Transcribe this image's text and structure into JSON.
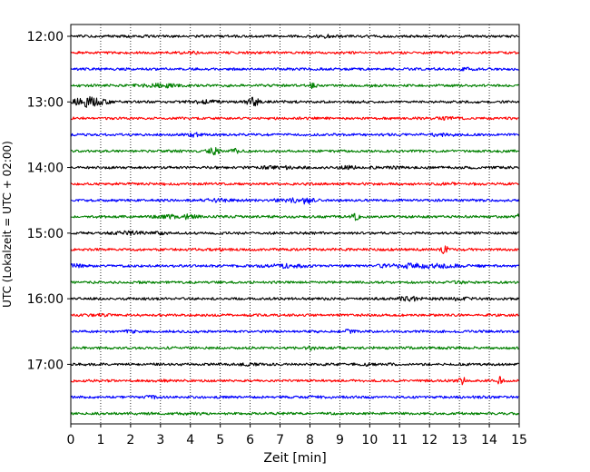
{
  "chart_data": {
    "type": "line",
    "xlabel": "Zeit  [min]",
    "ylabel": "UTC (Lokalzeit = UTC + 02:00)",
    "xlim": [
      0,
      15
    ],
    "x_ticks": [
      "0",
      "1",
      "2",
      "3",
      "4",
      "5",
      "6",
      "7",
      "8",
      "9",
      "10",
      "11",
      "12",
      "13",
      "14",
      "15"
    ],
    "y_ticks": [
      {
        "label": "12:00",
        "row": 0
      },
      {
        "label": "13:00",
        "row": 4
      },
      {
        "label": "14:00",
        "row": 8
      },
      {
        "label": "15:00",
        "row": 12
      },
      {
        "label": "16:00",
        "row": 16
      },
      {
        "label": "17:00",
        "row": 20
      }
    ],
    "grid": "vertical-dotted",
    "colors": [
      "#000000",
      "#ff0000",
      "#0000ff",
      "#008000"
    ],
    "traces": [
      {
        "start": "12:00",
        "color": "#000000",
        "events": [
          [
            8.5,
            0.4,
            0.7
          ]
        ]
      },
      {
        "start": "12:15",
        "color": "#ff0000",
        "events": [
          [
            4.0,
            0.3,
            0.6
          ]
        ]
      },
      {
        "start": "12:30",
        "color": "#0000ff",
        "events": [
          [
            13.2,
            0.3,
            0.7
          ]
        ]
      },
      {
        "start": "12:45",
        "color": "#008000",
        "events": [
          [
            3.0,
            0.6,
            1.6
          ],
          [
            8.1,
            0.1,
            2.5
          ]
        ]
      },
      {
        "start": "13:00",
        "color": "#000000",
        "events": [
          [
            0.6,
            0.5,
            5.0
          ],
          [
            4.5,
            0.5,
            1.2
          ],
          [
            6.1,
            0.2,
            4.0
          ]
        ]
      },
      {
        "start": "13:15",
        "color": "#ff0000",
        "events": [
          [
            12.6,
            0.3,
            0.6
          ]
        ]
      },
      {
        "start": "13:30",
        "color": "#0000ff",
        "events": [
          [
            4.1,
            0.2,
            2.0
          ],
          [
            12.4,
            0.5,
            0.8
          ]
        ]
      },
      {
        "start": "13:45",
        "color": "#008000",
        "events": [
          [
            4.8,
            0.2,
            3.5
          ],
          [
            5.5,
            0.15,
            2.8
          ]
        ]
      },
      {
        "start": "14:00",
        "color": "#000000",
        "events": [
          [
            7.0,
            0.6,
            0.9
          ],
          [
            9.5,
            0.5,
            1.3
          ],
          [
            10.8,
            0.2,
            0.8
          ]
        ]
      },
      {
        "start": "14:15",
        "color": "#ff0000",
        "events": [
          [
            12.8,
            0.3,
            0.5
          ]
        ]
      },
      {
        "start": "14:30",
        "color": "#0000ff",
        "events": [
          [
            5.0,
            0.5,
            1.2
          ],
          [
            7.5,
            0.6,
            1.8
          ],
          [
            7.9,
            0.15,
            2.2
          ]
        ]
      },
      {
        "start": "14:45",
        "color": "#008000",
        "events": [
          [
            3.5,
            0.7,
            1.3
          ],
          [
            4.0,
            0.2,
            1.6
          ],
          [
            9.5,
            0.15,
            2.8
          ],
          [
            15.0,
            0.1,
            2.0
          ]
        ]
      },
      {
        "start": "15:00",
        "color": "#000000",
        "events": [
          [
            1.9,
            0.5,
            1.8
          ],
          [
            3.0,
            0.3,
            0.8
          ]
        ]
      },
      {
        "start": "15:15",
        "color": "#ff0000",
        "events": [
          [
            5.0,
            0.1,
            1.0
          ],
          [
            9.1,
            0.1,
            1.0
          ],
          [
            12.5,
            0.12,
            3.5
          ]
        ]
      },
      {
        "start": "15:30",
        "color": "#0000ff",
        "events": [
          [
            0.2,
            0.3,
            1.4
          ],
          [
            7.2,
            0.6,
            1.4
          ],
          [
            10.8,
            0.6,
            1.4
          ],
          [
            11.6,
            0.4,
            2.2
          ],
          [
            12.5,
            0.7,
            1.4
          ]
        ]
      },
      {
        "start": "15:45",
        "color": "#008000",
        "events": [
          [
            13.0,
            0.3,
            0.5
          ]
        ]
      },
      {
        "start": "16:00",
        "color": "#000000",
        "events": [
          [
            11.3,
            0.4,
            1.6
          ],
          [
            12.9,
            0.5,
            1.0
          ]
        ]
      },
      {
        "start": "16:15",
        "color": "#ff0000",
        "events": [
          [
            1.0,
            0.3,
            0.5
          ]
        ]
      },
      {
        "start": "16:30",
        "color": "#0000ff",
        "events": [
          [
            2.0,
            0.3,
            0.6
          ],
          [
            9.3,
            0.15,
            2.0
          ]
        ]
      },
      {
        "start": "16:45",
        "color": "#008000",
        "events": [
          [
            8.0,
            0.15,
            2.2
          ]
        ]
      },
      {
        "start": "17:00",
        "color": "#000000",
        "events": [
          [
            6.0,
            0.3,
            1.0
          ],
          [
            9.8,
            0.3,
            0.6
          ]
        ]
      },
      {
        "start": "17:15",
        "color": "#ff0000",
        "events": [
          [
            3.1,
            0.2,
            0.8
          ],
          [
            13.1,
            0.1,
            4.0
          ],
          [
            14.35,
            0.1,
            3.5
          ]
        ]
      },
      {
        "start": "17:30",
        "color": "#0000ff",
        "events": [
          [
            2.7,
            0.15,
            1.2
          ],
          [
            8.2,
            0.3,
            0.8
          ]
        ]
      },
      {
        "start": "17:45",
        "color": "#008000",
        "events": [
          [
            4.0,
            0.3,
            0.6
          ]
        ]
      }
    ]
  }
}
